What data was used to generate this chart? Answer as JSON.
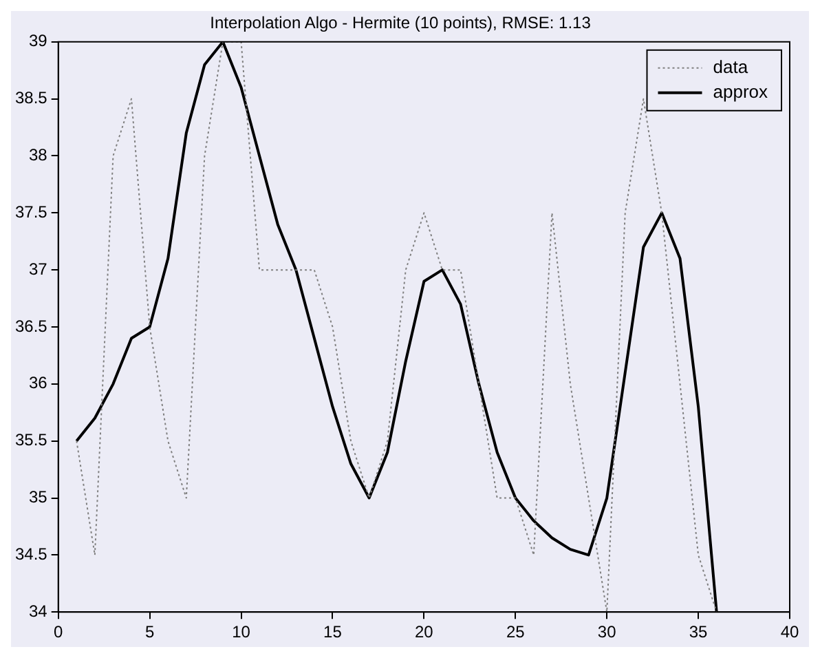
{
  "chart_data": {
    "type": "line",
    "title": "Interpolation Algo - Hermite (10 points), RMSE: 1.13",
    "x": [
      1,
      2,
      3,
      4,
      5,
      6,
      7,
      8,
      9,
      10,
      11,
      12,
      13,
      14,
      15,
      16,
      17,
      18,
      19,
      20,
      21,
      22,
      23,
      24,
      25,
      26,
      27,
      28,
      29,
      30,
      31,
      32,
      33,
      34,
      35,
      36
    ],
    "series": [
      {
        "name": "data",
        "color": "#808080",
        "line_style": "dotted",
        "values": [
          35.5,
          34.5,
          38,
          38.5,
          36.5,
          35.5,
          35,
          38,
          39,
          39,
          37,
          37,
          37,
          37,
          36.5,
          35.5,
          35,
          35.5,
          37,
          37.5,
          37,
          37,
          36,
          35,
          35,
          34.5,
          37.5,
          36,
          35,
          34,
          37.5,
          38.5,
          37.5,
          36,
          34.5,
          34
        ]
      },
      {
        "name": "approx",
        "color": "#000000",
        "line_style": "solid",
        "values": [
          35.5,
          35.7,
          36,
          36.4,
          36.5,
          37.1,
          38.2,
          38.8,
          39,
          38.6,
          38,
          37.4,
          37,
          36.4,
          35.8,
          35.3,
          35,
          35.4,
          36.2,
          36.9,
          37,
          36.7,
          36,
          35.4,
          35,
          34.8,
          34.65,
          34.55,
          34.5,
          35,
          36.1,
          37.2,
          37.5,
          37.1,
          35.8,
          34
        ]
      }
    ],
    "xlim": [
      0,
      40
    ],
    "xticks": [
      0,
      5,
      10,
      15,
      20,
      25,
      30,
      35,
      40
    ],
    "ylim": [
      34,
      39
    ],
    "yticks": [
      34,
      34.5,
      35,
      35.5,
      36,
      36.5,
      37,
      37.5,
      38,
      38.5,
      39
    ],
    "grid": false,
    "legend": "top right",
    "marker": "none"
  }
}
